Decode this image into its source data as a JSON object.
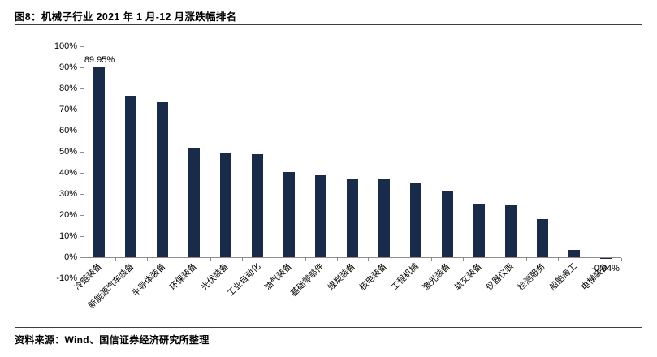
{
  "header": {
    "title": "图8：机械子行业 2021 年 1 月-12 月涨跌幅排名"
  },
  "footer": {
    "source": "资料来源：Wind、国信证券经济研究所整理"
  },
  "colors": {
    "bar": "#1a2b49",
    "axis": "#8c8c8c",
    "text": "#000000",
    "rule": "#3c3c3c"
  },
  "chart_data": {
    "type": "bar",
    "title": "图8：机械子行业 2021 年 1 月-12 月涨跌幅排名",
    "categories": [
      "冷链装备",
      "新能源汽车装备",
      "半导体装备",
      "环保装备",
      "光伏装备",
      "工业自动化",
      "油气装备",
      "基础零部件",
      "煤炭装备",
      "核电装备",
      "工程机械",
      "激光装备",
      "轨交装备",
      "仪器仪表",
      "检测服务",
      "船舶海工",
      "电梯装备"
    ],
    "values": [
      89.95,
      76.4,
      73.6,
      51.9,
      49.3,
      49.0,
      40.3,
      38.7,
      37.0,
      36.8,
      34.9,
      31.5,
      25.3,
      24.8,
      17.9,
      3.5,
      -0.04
    ],
    "xlabel": "",
    "ylabel": "",
    "ylim": [
      -10,
      100
    ],
    "ytick_step": 10,
    "yticks": [
      "100%",
      "90%",
      "80%",
      "70%",
      "60%",
      "50%",
      "40%",
      "30%",
      "20%",
      "10%",
      "0%",
      "-10%"
    ],
    "grid": false,
    "legend": "none",
    "bar_color": "#1a2b49",
    "data_labels": [
      {
        "index": 0,
        "text": "89.95%",
        "position": "above"
      },
      {
        "index": 16,
        "text": "-0.04%",
        "position": "below"
      }
    ]
  }
}
